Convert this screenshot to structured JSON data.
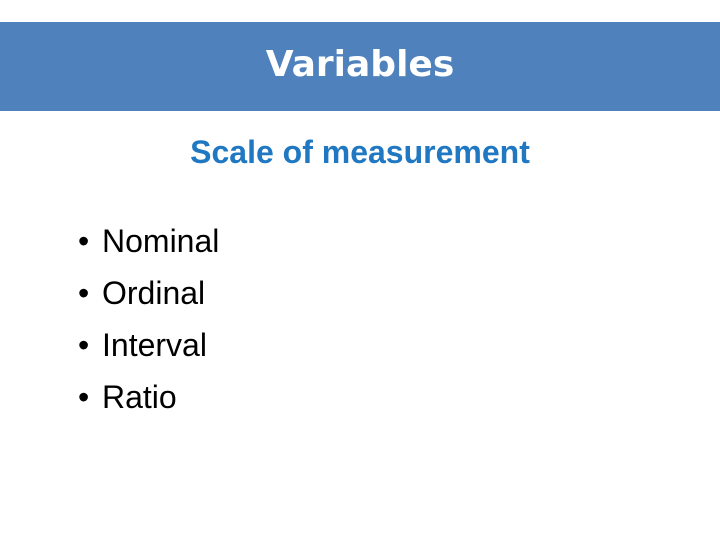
{
  "slide": {
    "title": "Variables",
    "subtitle": "Scale of measurement",
    "bullet_glyph": "•",
    "bullets": [
      "Nominal",
      "Ordinal",
      "Interval",
      "Ratio"
    ]
  },
  "colors": {
    "title_bar": "#4f81bd",
    "title_text": "#ffffff",
    "subtitle_text": "#1f78c1",
    "body_text": "#000000"
  }
}
